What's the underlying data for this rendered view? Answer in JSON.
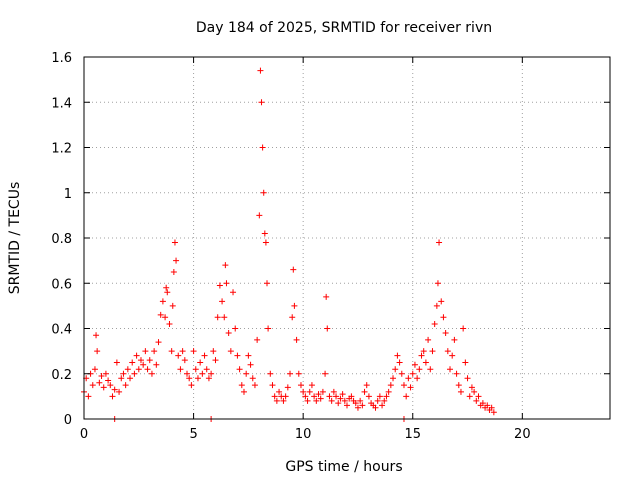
{
  "chart_data": {
    "type": "scatter",
    "title": "Day 184 of 2025, SRMTID for receiver rivn",
    "xlabel": "GPS time / hours",
    "ylabel": "SRMTID / TECUs",
    "xlim": [
      0,
      24
    ],
    "ylim": [
      0,
      1.6
    ],
    "x_ticks": [
      0,
      5,
      10,
      15,
      20
    ],
    "x_tick_labels": [
      "0",
      "5",
      "10",
      "15",
      "20"
    ],
    "y_ticks": [
      0,
      0.2,
      0.4,
      0.6,
      0.8,
      1,
      1.2,
      1.4,
      1.6
    ],
    "y_tick_labels": [
      "0",
      "0.2",
      "0.4",
      "0.6",
      "0.8",
      "1",
      "1.2",
      "1.4",
      "1.6"
    ],
    "grid": true,
    "marker": "plus",
    "color": "#ff0000",
    "series": [
      {
        "name": "SRMTID",
        "x": [
          0.0,
          0.1,
          0.2,
          0.3,
          0.4,
          0.5,
          0.55,
          0.6,
          0.7,
          0.8,
          0.9,
          1.0,
          1.1,
          1.2,
          1.3,
          1.4,
          1.5,
          1.6,
          1.7,
          1.8,
          1.9,
          2.0,
          2.1,
          2.2,
          2.3,
          2.4,
          2.5,
          2.6,
          2.7,
          2.8,
          2.9,
          3.0,
          3.1,
          3.2,
          3.3,
          3.4,
          3.5,
          3.6,
          3.7,
          3.75,
          3.8,
          3.9,
          4.0,
          4.05,
          4.1,
          4.15,
          4.2,
          4.3,
          4.4,
          4.5,
          4.6,
          4.7,
          4.8,
          4.9,
          5.0,
          5.1,
          5.2,
          5.3,
          5.4,
          5.5,
          5.6,
          5.7,
          5.8,
          5.9,
          6.0,
          6.1,
          6.2,
          6.3,
          6.4,
          6.45,
          6.5,
          6.6,
          6.7,
          6.8,
          6.9,
          7.0,
          7.1,
          7.2,
          7.3,
          7.4,
          7.5,
          7.6,
          7.7,
          7.8,
          7.9,
          8.0,
          8.05,
          8.1,
          8.15,
          8.2,
          8.25,
          8.3,
          8.35,
          8.4,
          8.5,
          8.6,
          8.7,
          8.8,
          8.9,
          9.0,
          9.1,
          9.2,
          9.3,
          9.4,
          9.5,
          9.55,
          9.6,
          9.7,
          9.8,
          9.9,
          10.0,
          10.1,
          10.2,
          10.3,
          10.4,
          10.5,
          10.6,
          10.7,
          10.8,
          10.9,
          11.0,
          11.05,
          11.1,
          11.2,
          11.3,
          11.4,
          11.5,
          11.6,
          11.7,
          11.8,
          11.9,
          12.0,
          12.1,
          12.2,
          12.3,
          12.4,
          12.5,
          12.6,
          12.7,
          12.8,
          12.9,
          13.0,
          13.1,
          13.2,
          13.3,
          13.4,
          13.5,
          13.6,
          13.7,
          13.8,
          13.9,
          14.0,
          14.1,
          14.2,
          14.3,
          14.4,
          14.5,
          14.6,
          14.7,
          14.8,
          14.9,
          15.0,
          15.1,
          15.2,
          15.3,
          15.4,
          15.5,
          15.6,
          15.7,
          15.8,
          15.9,
          16.0,
          16.1,
          16.15,
          16.2,
          16.3,
          16.4,
          16.5,
          16.6,
          16.7,
          16.8,
          16.9,
          17.0,
          17.1,
          17.2,
          17.3,
          17.4,
          17.5,
          17.6,
          17.7,
          17.8,
          17.9,
          18.0,
          18.1,
          18.2,
          18.3,
          18.4,
          18.5,
          18.6,
          18.7,
          1.4,
          5.8,
          14.6
        ],
        "y": [
          0.12,
          0.18,
          0.1,
          0.2,
          0.15,
          0.22,
          0.37,
          0.3,
          0.16,
          0.19,
          0.14,
          0.2,
          0.17,
          0.15,
          0.1,
          0.13,
          0.25,
          0.12,
          0.18,
          0.2,
          0.15,
          0.22,
          0.18,
          0.25,
          0.2,
          0.28,
          0.22,
          0.26,
          0.24,
          0.3,
          0.22,
          0.26,
          0.2,
          0.3,
          0.24,
          0.34,
          0.46,
          0.52,
          0.45,
          0.58,
          0.56,
          0.42,
          0.3,
          0.5,
          0.65,
          0.78,
          0.7,
          0.28,
          0.22,
          0.3,
          0.26,
          0.2,
          0.18,
          0.15,
          0.3,
          0.22,
          0.18,
          0.25,
          0.2,
          0.28,
          0.22,
          0.18,
          0.2,
          0.3,
          0.26,
          0.45,
          0.59,
          0.52,
          0.45,
          0.68,
          0.6,
          0.38,
          0.3,
          0.56,
          0.4,
          0.28,
          0.22,
          0.15,
          0.12,
          0.2,
          0.28,
          0.24,
          0.18,
          0.15,
          0.35,
          0.9,
          1.54,
          1.4,
          1.2,
          1.0,
          0.82,
          0.78,
          0.6,
          0.4,
          0.2,
          0.15,
          0.1,
          0.08,
          0.12,
          0.1,
          0.08,
          0.1,
          0.14,
          0.2,
          0.45,
          0.66,
          0.5,
          0.35,
          0.2,
          0.15,
          0.12,
          0.1,
          0.08,
          0.12,
          0.15,
          0.1,
          0.08,
          0.11,
          0.09,
          0.12,
          0.2,
          0.54,
          0.4,
          0.1,
          0.08,
          0.12,
          0.1,
          0.07,
          0.09,
          0.11,
          0.08,
          0.06,
          0.09,
          0.1,
          0.08,
          0.07,
          0.05,
          0.08,
          0.06,
          0.12,
          0.15,
          0.1,
          0.07,
          0.06,
          0.05,
          0.08,
          0.1,
          0.06,
          0.08,
          0.1,
          0.12,
          0.15,
          0.18,
          0.22,
          0.28,
          0.25,
          0.2,
          0.15,
          0.1,
          0.18,
          0.14,
          0.2,
          0.24,
          0.18,
          0.22,
          0.28,
          0.3,
          0.25,
          0.35,
          0.22,
          0.3,
          0.42,
          0.5,
          0.6,
          0.78,
          0.52,
          0.45,
          0.38,
          0.3,
          0.22,
          0.28,
          0.35,
          0.2,
          0.15,
          0.12,
          0.4,
          0.25,
          0.18,
          0.1,
          0.14,
          0.12,
          0.08,
          0.1,
          0.06,
          0.07,
          0.05,
          0.06,
          0.04,
          0.05,
          0.03,
          0.0,
          0.0,
          0.0
        ]
      }
    ]
  }
}
